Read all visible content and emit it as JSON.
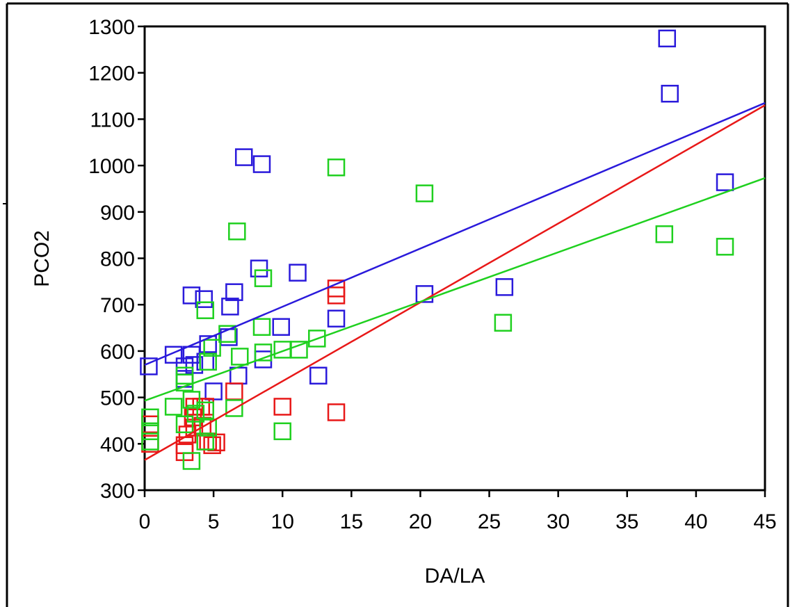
{
  "chart_data": {
    "type": "scatter",
    "x_label": "DA/LA",
    "y_label": "PCO2",
    "xlim": [
      0,
      45
    ],
    "ylim": [
      300,
      1300
    ],
    "xticks": [
      0,
      5,
      10,
      15,
      20,
      25,
      30,
      35,
      40,
      45
    ],
    "yticks": [
      300,
      400,
      500,
      600,
      700,
      800,
      900,
      1000,
      1100,
      1200,
      1300
    ],
    "series": [
      {
        "color": "#2a1adb",
        "x": [
          37.9,
          38.1,
          42.1,
          26.1,
          20.3,
          13.9,
          12.6,
          9.9,
          11.1,
          8.3,
          7.2,
          8.5,
          6.5,
          6.2,
          6.1,
          4.3,
          3.4,
          0.3,
          2.1,
          3.4,
          4.6,
          4.4,
          8.6,
          6.8,
          5.0,
          2.9,
          2.9,
          3.6
        ],
        "y": [
          1274,
          1155,
          964,
          738,
          723,
          670,
          547,
          652,
          769,
          778,
          1018,
          1003,
          727,
          696,
          630,
          712,
          720,
          567,
          592,
          592,
          615,
          577,
          582,
          547,
          513,
          567,
          540,
          570
        ]
      },
      {
        "color": "#e81818",
        "x": [
          13.9,
          13.9,
          13.9,
          10.0,
          6.5,
          0.4,
          0.4,
          2.9,
          2.9,
          3.1,
          3.6,
          3.6,
          4.1,
          4.2,
          4.6,
          5.2,
          4.9,
          4.4,
          3.5
        ],
        "y": [
          735,
          720,
          468,
          480,
          513,
          400,
          442,
          397,
          382,
          420,
          435,
          480,
          480,
          439,
          405,
          403,
          397,
          480,
          457
        ]
      },
      {
        "color": "#1fd01f",
        "x": [
          13.9,
          20.3,
          6.7,
          37.7,
          42.1,
          26.0,
          8.6,
          8.5,
          8.6,
          10.0,
          11.2,
          12.5,
          6.9,
          4.9,
          6.0,
          4.4,
          4.6,
          2.9,
          2.9,
          2.1,
          3.4,
          3.7,
          4.4,
          0.4,
          0.4,
          0.4,
          3.4,
          4.4,
          6.5,
          10.0,
          2.9,
          4.6
        ],
        "y": [
          996,
          940,
          858,
          852,
          825,
          661,
          757,
          652,
          597,
          603,
          603,
          627,
          588,
          607,
          637,
          688,
          577,
          547,
          532,
          480,
          495,
          465,
          472,
          457,
          427,
          405,
          363,
          405,
          477,
          427,
          442,
          435
        ]
      }
    ],
    "fit_lines": [
      {
        "color": "#2a1adb",
        "x": [
          0,
          45
        ],
        "y": [
          570,
          1135
        ]
      },
      {
        "color": "#e81818",
        "x": [
          0,
          45
        ],
        "y": [
          365,
          1130
        ]
      },
      {
        "color": "#1fd01f",
        "x": [
          0,
          45
        ],
        "y": [
          493,
          973
        ]
      }
    ]
  }
}
